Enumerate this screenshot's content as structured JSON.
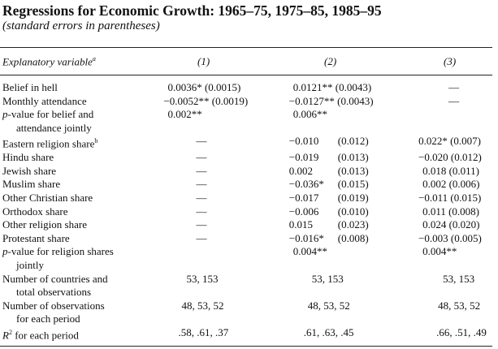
{
  "title": "Regressions for Economic Growth: 1965–75, 1975–85, 1985–95",
  "subtitle": "(standard errors in parentheses)",
  "header": {
    "var_label": "Explanatory variable",
    "var_footnote": "a",
    "col1": "(1)",
    "col2": "(2)",
    "col3": "(3)"
  },
  "rows": [
    {
      "label": "Belief in hell",
      "c1": "0.0036* (0.0015)",
      "c2": "0.0121** (0.0043)",
      "c3": "—"
    },
    {
      "label": "Monthly attendance",
      "c1": "−0.0052** (0.0019)",
      "c2": "−0.0127** (0.0043)",
      "c3": "—"
    },
    {
      "label_prefix": "p",
      "label_rest": "-value for belief and",
      "label_cont": "attendance jointly",
      "c1": "0.002**",
      "c2": "0.006**",
      "c3": ""
    },
    {
      "label": "Eastern religion share",
      "footnote": "b",
      "c1": "—",
      "c2_coef": "−0.010",
      "c2_se": "(0.012)",
      "c3": "0.022* (0.007)"
    },
    {
      "label": "Hindu share",
      "c1": "—",
      "c2_coef": "−0.019",
      "c2_se": "(0.013)",
      "c3": "−0.020 (0.012)"
    },
    {
      "label": "Jewish share",
      "c1": "—",
      "c2_coef": "0.002",
      "c2_se": "(0.013)",
      "c3": "0.018 (0.011)"
    },
    {
      "label": "Muslim share",
      "c1": "—",
      "c2_coef": "−0.036*",
      "c2_se": "(0.015)",
      "c3": "0.002 (0.006)"
    },
    {
      "label": "Other Christian share",
      "c1": "—",
      "c2_coef": "−0.017",
      "c2_se": "(0.019)",
      "c3": "−0.011 (0.015)"
    },
    {
      "label": "Orthodox share",
      "c1": "—",
      "c2_coef": "−0.006",
      "c2_se": "(0.010)",
      "c3": "0.011 (0.008)"
    },
    {
      "label": "Other religion share",
      "c1": "—",
      "c2_coef": "0.015",
      "c2_se": "(0.023)",
      "c3": "0.024 (0.020)"
    },
    {
      "label": "Protestant share",
      "c1": "—",
      "c2_coef": "−0.016*",
      "c2_se": "(0.008)",
      "c3": "−0.003 (0.005)"
    },
    {
      "label_prefix": "p",
      "label_rest": "-value for religion shares",
      "label_cont": "jointly",
      "c1": "",
      "c2": "0.004**",
      "c3": "0.004**"
    },
    {
      "label": "Number of countries and",
      "label_cont": "total observations",
      "c1": "53, 153",
      "c2": "53, 153",
      "c3": "53, 153"
    },
    {
      "label": "Number of observations",
      "label_cont": "for each period",
      "c1": "48, 53, 52",
      "c2": "48, 53, 52",
      "c3": "48, 53, 52"
    },
    {
      "label_prefix": "R",
      "label_sup": "2",
      "label_rest": " for each period",
      "c1": ".58, .61, .37",
      "c2": ".61, .63, .45",
      "c3": ".66, .51, .49"
    }
  ]
}
